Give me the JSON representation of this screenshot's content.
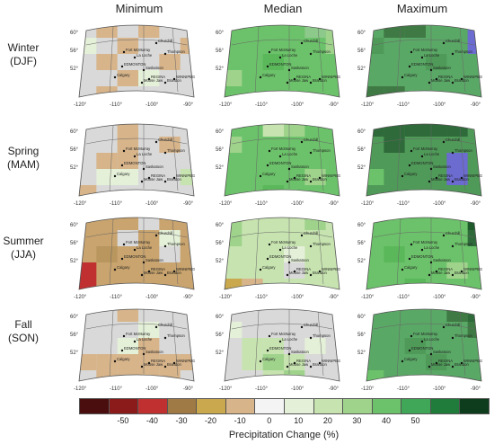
{
  "columns": [
    "Minimum",
    "Median",
    "Maximum"
  ],
  "rows": [
    {
      "line1": "Winter",
      "line2": "(DJF)"
    },
    {
      "line1": "Spring",
      "line2": "(MAM)"
    },
    {
      "line1": "Summer",
      "line2": "(JJA)"
    },
    {
      "line1": "Fall",
      "line2": "(SON)"
    }
  ],
  "axis_ticks": {
    "lat": [
      "60°",
      "56°",
      "52°"
    ],
    "lon": [
      "-120°",
      "-110°",
      "-100°",
      "-90°"
    ]
  },
  "cities": [
    "Churchill",
    "Fort McMurray",
    "La Loche",
    "Thompson",
    "EDMONTON",
    "Saskatoon",
    "Calgary",
    "REGINA",
    "Moose Jaw",
    "Brandon",
    "WINNIPEG"
  ],
  "colorbar": {
    "label": "Precipitation Change (%)",
    "ticks": [
      "-50",
      "-40",
      "-30",
      "-20",
      "-10",
      "0",
      "10",
      "20",
      "30",
      "40",
      "50"
    ],
    "colors": [
      "#4a0e0e",
      "#8b1a1a",
      "#c03030",
      "#a07a44",
      "#c9a84e",
      "#d7b48a",
      "#f4f4f4",
      "#e4f0d8",
      "#c7e4b0",
      "#9fd38c",
      "#6cc26a",
      "#3fa757",
      "#1f7c3a",
      "#0d3d1d"
    ]
  },
  "panels": [
    {
      "id": "winter-min",
      "bg": "#d9d9d9",
      "cells": [
        [
          0,
          1,
          "#d7b48a"
        ],
        [
          0,
          3,
          "#d7b48a"
        ],
        [
          1,
          0,
          "#e4f0d8"
        ],
        [
          1,
          2,
          "#d7b48a"
        ],
        [
          2,
          1,
          "#d7b48a"
        ],
        [
          2,
          4,
          "#d7b48a"
        ],
        [
          3,
          2,
          "#d7b48a"
        ],
        [
          3,
          3,
          "#e4f0d8"
        ],
        [
          4,
          1,
          "#d7b48a"
        ],
        [
          1,
          5,
          "#d7b48a"
        ]
      ]
    },
    {
      "id": "winter-med",
      "bg": "#6cc26a",
      "cells": [
        [
          0,
          5,
          "#9fd38c"
        ],
        [
          1,
          5,
          "#9fd38c"
        ],
        [
          0,
          4,
          "#8cc98a"
        ],
        [
          3,
          0,
          "#9fd38c"
        ],
        [
          2,
          2,
          "#5bb85a"
        ]
      ]
    },
    {
      "id": "winter-max",
      "bg": "#5aa866",
      "cells": [
        [
          0,
          1,
          "#3f7a44"
        ],
        [
          0,
          2,
          "#3f7a44"
        ],
        [
          0,
          5,
          "#6b6bd0"
        ],
        [
          1,
          5,
          "#6b6bd0"
        ],
        [
          4,
          0,
          "#3f7a44"
        ],
        [
          4,
          1,
          "#3f7a44"
        ],
        [
          2,
          3,
          "#4f9a58"
        ],
        [
          1,
          0,
          "#4f9a58"
        ]
      ]
    },
    {
      "id": "spring-min",
      "bg": "#d9d9d9",
      "cells": [
        [
          0,
          2,
          "#d7b48a"
        ],
        [
          1,
          2,
          "#d7b48a"
        ],
        [
          2,
          1,
          "#d7b48a"
        ],
        [
          2,
          2,
          "#d7b48a"
        ],
        [
          3,
          1,
          "#e4f0d8"
        ],
        [
          3,
          2,
          "#e4f0d8"
        ],
        [
          3,
          5,
          "#c7e4b0"
        ],
        [
          4,
          0,
          "#d7b48a"
        ],
        [
          1,
          4,
          "#d7b48a"
        ]
      ]
    },
    {
      "id": "spring-med",
      "bg": "#6cc26a",
      "cells": [
        [
          0,
          2,
          "#c7e4b0"
        ],
        [
          0,
          3,
          "#9fd38c"
        ],
        [
          1,
          0,
          "#9fd38c"
        ],
        [
          3,
          4,
          "#9fd38c"
        ],
        [
          4,
          2,
          "#5bb85a"
        ]
      ]
    },
    {
      "id": "spring-max",
      "bg": "#4f9a58",
      "cells": [
        [
          0,
          0,
          "#2f6a3a"
        ],
        [
          0,
          1,
          "#2f6a3a"
        ],
        [
          0,
          2,
          "#2f6a3a"
        ],
        [
          0,
          3,
          "#2f6a3a"
        ],
        [
          0,
          4,
          "#2f6a3a"
        ],
        [
          1,
          1,
          "#2f6a3a"
        ],
        [
          2,
          4,
          "#6b6bd0"
        ],
        [
          3,
          4,
          "#6b6bd0"
        ],
        [
          3,
          0,
          "#6cc26a"
        ]
      ]
    },
    {
      "id": "summer-min",
      "bg": "#c9a46e",
      "cells": [
        [
          0,
          3,
          "#d9d9d9"
        ],
        [
          1,
          2,
          "#d9d9d9"
        ],
        [
          2,
          4,
          "#d9d9d9"
        ],
        [
          1,
          4,
          "#e4f0d8"
        ],
        [
          4,
          0,
          "#c03030"
        ],
        [
          3,
          0,
          "#c03030"
        ],
        [
          2,
          1,
          "#b8965e"
        ]
      ]
    },
    {
      "id": "summer-med",
      "bg": "#c7e4b0",
      "cells": [
        [
          0,
          0,
          "#9fd38c"
        ],
        [
          1,
          0,
          "#9fd38c"
        ],
        [
          4,
          0,
          "#c9a84e"
        ],
        [
          4,
          1,
          "#d7b48a"
        ],
        [
          3,
          3,
          "#d9d9d9"
        ],
        [
          2,
          3,
          "#e4f0d8"
        ],
        [
          0,
          4,
          "#9fd38c"
        ]
      ]
    },
    {
      "id": "summer-max",
      "bg": "#6cc26a",
      "cells": [
        [
          0,
          5,
          "#1f5a2a"
        ],
        [
          1,
          5,
          "#2f6a3a"
        ],
        [
          3,
          4,
          "#9fd38c"
        ],
        [
          2,
          1,
          "#5bb85a"
        ],
        [
          4,
          2,
          "#5bb85a"
        ]
      ]
    },
    {
      "id": "fall-min",
      "bg": "#d9d9d9",
      "cells": [
        [
          0,
          2,
          "#d7b48a"
        ],
        [
          2,
          2,
          "#e4f0d8"
        ],
        [
          2,
          3,
          "#d7b48a"
        ],
        [
          3,
          0,
          "#d7b48a"
        ],
        [
          3,
          1,
          "#d7b48a"
        ],
        [
          3,
          2,
          "#d7b48a"
        ],
        [
          3,
          3,
          "#d7b48a"
        ],
        [
          3,
          4,
          "#d7b48a"
        ],
        [
          3,
          5,
          "#d7b48a"
        ],
        [
          4,
          1,
          "#d7b48a"
        ],
        [
          4,
          2,
          "#d7b48a"
        ],
        [
          4,
          3,
          "#d7b48a"
        ],
        [
          4,
          4,
          "#d7b48a"
        ],
        [
          1,
          3,
          "#e4f0d8"
        ]
      ]
    },
    {
      "id": "fall-med",
      "bg": "#d9d9d9",
      "cells": [
        [
          1,
          0,
          "#e4f0d8"
        ],
        [
          2,
          1,
          "#c7e4b0"
        ],
        [
          2,
          2,
          "#c7e4b0"
        ],
        [
          3,
          1,
          "#c7e4b0"
        ],
        [
          3,
          2,
          "#9fd38c"
        ],
        [
          3,
          3,
          "#c7e4b0"
        ],
        [
          4,
          2,
          "#c7e4b0"
        ],
        [
          4,
          3,
          "#9fd38c"
        ],
        [
          2,
          4,
          "#e4f0d8"
        ]
      ]
    },
    {
      "id": "fall-max",
      "bg": "#5aa866",
      "cells": [
        [
          0,
          4,
          "#3f7a44"
        ],
        [
          0,
          5,
          "#2f6a3a"
        ],
        [
          1,
          5,
          "#3f7a44"
        ],
        [
          4,
          0,
          "#6cc26a"
        ],
        [
          2,
          2,
          "#4f9a58"
        ],
        [
          3,
          3,
          "#4f9a58"
        ]
      ]
    }
  ]
}
